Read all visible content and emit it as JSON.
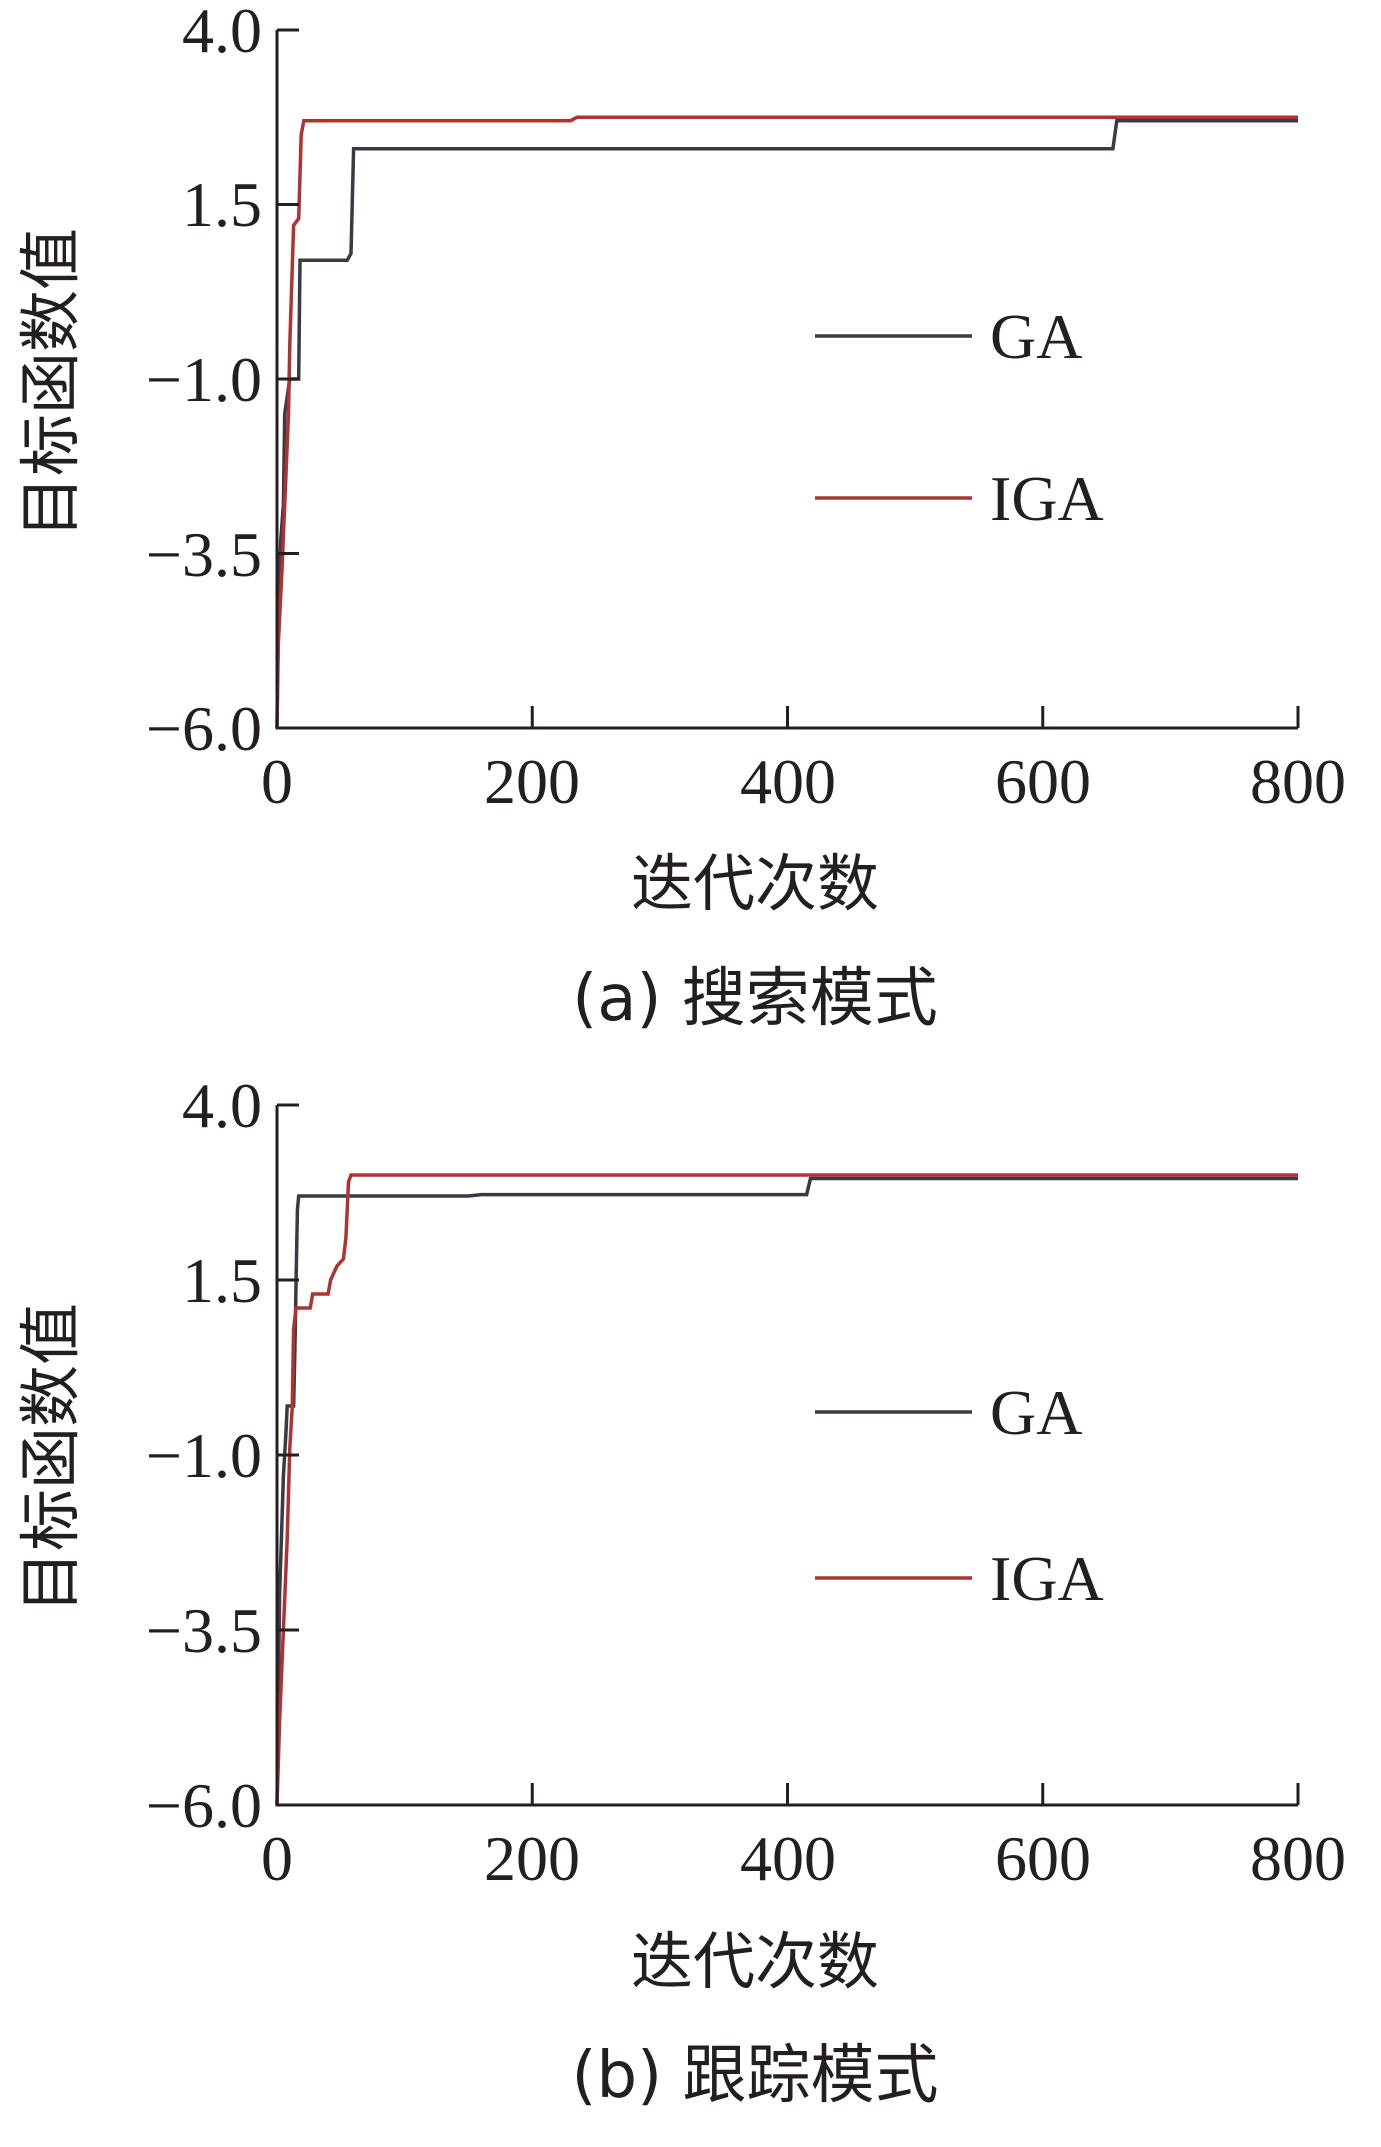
{
  "chart_data": [
    {
      "type": "line",
      "caption": "(a) 搜索模式",
      "xlabel": "迭代次数",
      "ylabel": "目标函数值",
      "xlim": [
        0,
        800
      ],
      "ylim": [
        -6.0,
        4.0
      ],
      "xticks": [
        "0",
        "200",
        "400",
        "600",
        "800"
      ],
      "yticks": [
        "4.0",
        "1.5",
        "−1.0",
        "−3.5",
        "−6.0"
      ],
      "legend": "center-right",
      "grid": false,
      "series": [
        {
          "name": "GA",
          "color": "#3a3a46",
          "points": [
            [
              0,
              -6.0
            ],
            [
              1,
              -4.4
            ],
            [
              3,
              -3.3
            ],
            [
              5,
              -2.8
            ],
            [
              6,
              -1.5
            ],
            [
              10,
              -1.0
            ],
            [
              17,
              -1.0
            ],
            [
              18,
              0.7
            ],
            [
              55,
              0.7
            ],
            [
              58,
              0.8
            ],
            [
              60,
              2.3
            ],
            [
              655,
              2.3
            ],
            [
              658,
              2.7
            ],
            [
              800,
              2.7
            ]
          ]
        },
        {
          "name": "IGA",
          "color": "#b03232",
          "points": [
            [
              0,
              -6.0
            ],
            [
              1,
              -4.8
            ],
            [
              4,
              -3.7
            ],
            [
              6,
              -2.8
            ],
            [
              9,
              -1.5
            ],
            [
              10,
              -0.5
            ],
            [
              13,
              1.2
            ],
            [
              17,
              1.3
            ],
            [
              19,
              2.5
            ],
            [
              21,
              2.7
            ],
            [
              230,
              2.7
            ],
            [
              235,
              2.75
            ],
            [
              800,
              2.75
            ]
          ]
        }
      ]
    },
    {
      "type": "line",
      "caption": "(b) 跟踪模式",
      "xlabel": "迭代次数",
      "ylabel": "目标函数值",
      "xlim": [
        0,
        800
      ],
      "ylim": [
        -6.0,
        4.0
      ],
      "xticks": [
        "0",
        "200",
        "400",
        "600",
        "800"
      ],
      "yticks": [
        "4.0",
        "1.5",
        "−1.0",
        "−3.5",
        "−6.0"
      ],
      "legend": "center-right",
      "grid": false,
      "series": [
        {
          "name": "GA",
          "color": "#3a3a46",
          "points": [
            [
              0,
              -6.0
            ],
            [
              1,
              -4.5
            ],
            [
              2,
              -3.0
            ],
            [
              5,
              -1.3
            ],
            [
              7,
              -0.7
            ],
            [
              8,
              -0.3
            ],
            [
              13,
              -0.3
            ],
            [
              14,
              0.5
            ],
            [
              15,
              1.5
            ],
            [
              16,
              2.5
            ],
            [
              17,
              2.7
            ],
            [
              150,
              2.7
            ],
            [
              160,
              2.72
            ],
            [
              415,
              2.72
            ],
            [
              418,
              2.95
            ],
            [
              800,
              2.95
            ]
          ]
        },
        {
          "name": "IGA",
          "color": "#b03232",
          "points": [
            [
              0,
              -6.0
            ],
            [
              2,
              -4.8
            ],
            [
              5,
              -3.5
            ],
            [
              8,
              -2.2
            ],
            [
              10,
              -0.9
            ],
            [
              12,
              -0.3
            ],
            [
              13,
              0.8
            ],
            [
              15,
              1.1
            ],
            [
              26,
              1.1
            ],
            [
              28,
              1.3
            ],
            [
              40,
              1.3
            ],
            [
              42,
              1.5
            ],
            [
              47,
              1.7
            ],
            [
              52,
              1.8
            ],
            [
              54,
              2.1
            ],
            [
              56,
              2.9
            ],
            [
              58,
              3.0
            ],
            [
              800,
              3.0
            ]
          ]
        }
      ]
    }
  ]
}
